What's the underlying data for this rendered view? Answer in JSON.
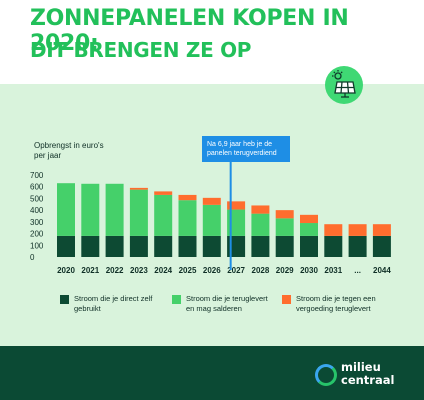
{
  "header": {
    "title_line1": "ZONNEPANELEN KOPEN IN 2020:",
    "title_line2": "DIT BRENGEN ZE OP"
  },
  "icons": {
    "solar_panel": "solar-panel-icon"
  },
  "colors": {
    "title": "#22c05a",
    "panel_bg": "#d9f3dc",
    "footer_bg": "#0b4a34",
    "dark_green": "#0d4a33",
    "light_green": "#45d06a",
    "orange": "#ff6d2e",
    "callout": "#1e8ee5"
  },
  "chart_data": {
    "type": "bar",
    "stacked": true,
    "ylabel": "Opbrengst in euro's per jaar",
    "ylim": [
      0,
      700
    ],
    "yticks": [
      0,
      100,
      200,
      300,
      400,
      500,
      600,
      700
    ],
    "grid": false,
    "categories": [
      "2020",
      "2021",
      "2022",
      "2023",
      "2024",
      "2025",
      "2026",
      "2027",
      "2028",
      "2029",
      "2030",
      "2031",
      "...",
      "2044"
    ],
    "series": [
      {
        "name": "Stroom die je direct zelf gebruikt",
        "color": "#0d4a33",
        "values": [
          180,
          180,
          180,
          180,
          180,
          180,
          180,
          180,
          180,
          180,
          180,
          180,
          180,
          180
        ]
      },
      {
        "name": "Stroom die je teruglevert en mag salderen",
        "color": "#45d06a",
        "values": [
          450,
          445,
          445,
          395,
          350,
          305,
          265,
          225,
          190,
          150,
          110,
          0,
          0,
          0
        ]
      },
      {
        "name": "Stroom die je tegen een vergoeding teruglevert",
        "color": "#ff6d2e",
        "values": [
          0,
          0,
          0,
          15,
          30,
          45,
          60,
          70,
          70,
          70,
          70,
          100,
          100,
          100
        ]
      }
    ],
    "annotation": {
      "text": "Na 6,9 jaar heb je de panelen terugverdiend",
      "at_years": 6.9
    },
    "legend_position": "bottom"
  },
  "footer": {
    "logo_line1": "milieu",
    "logo_line2": "centraal"
  }
}
